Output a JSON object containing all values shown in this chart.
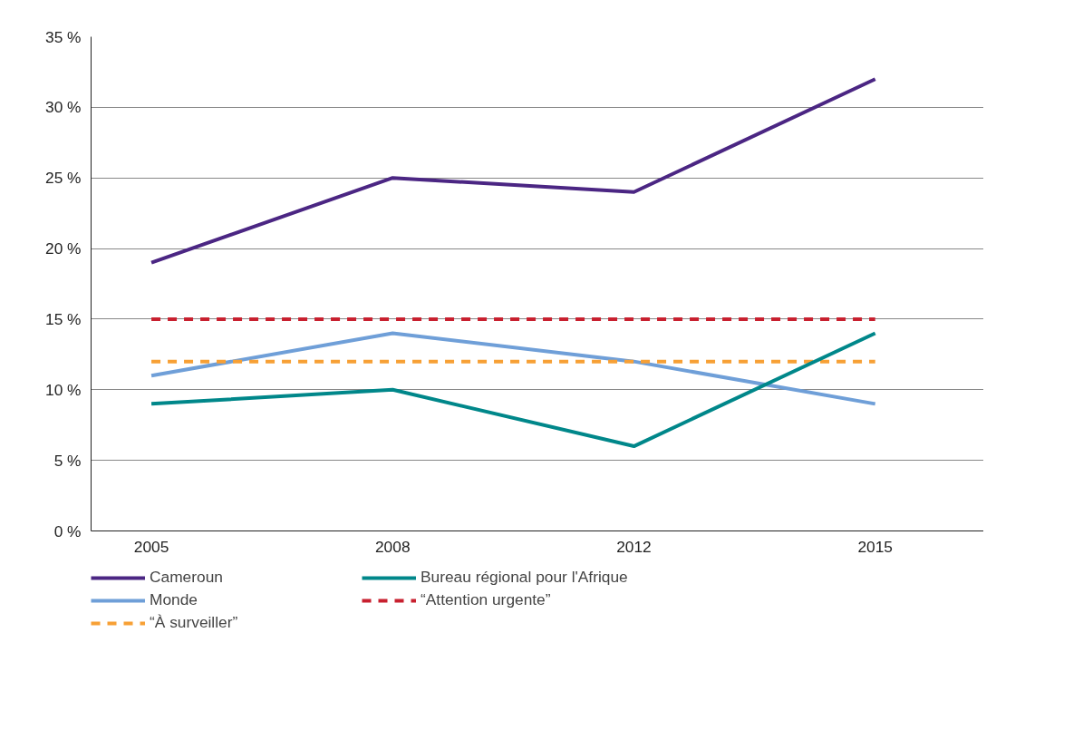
{
  "chart_data": {
    "type": "line",
    "categories": [
      "2005",
      "2008",
      "2012",
      "2015"
    ],
    "series": [
      {
        "name": "Cameroun",
        "color": "#4b2683",
        "values": [
          19,
          25,
          24,
          32
        ]
      },
      {
        "name": "Monde",
        "color": "#6f9fd8",
        "values": [
          11,
          14,
          12,
          9
        ]
      },
      {
        "name": "“À surveiller”",
        "color": "#f7a035",
        "values": [
          12,
          12,
          12,
          12
        ],
        "line_style": "dashed"
      },
      {
        "name": "Bureau régional pour l'Afrique",
        "color": "#00878a",
        "values": [
          9,
          10,
          6,
          14
        ]
      },
      {
        "name": "“Attention urgente”",
        "color": "#c8202f",
        "values": [
          15,
          15,
          15,
          15
        ],
        "line_style": "dashed"
      }
    ],
    "ylim": [
      0,
      35
    ],
    "yticks": [
      {
        "value": 0,
        "label": "0 %"
      },
      {
        "value": 5,
        "label": "5 %"
      },
      {
        "value": 10,
        "label": "10 %"
      },
      {
        "value": 15,
        "label": "15 %"
      },
      {
        "value": 20,
        "label": "20 %"
      },
      {
        "value": 25,
        "label": "25 %"
      },
      {
        "value": 30,
        "label": "30 %"
      },
      {
        "value": 35,
        "label": "35 %"
      }
    ],
    "grid": "y",
    "legend": "bottom",
    "line_style": "solid",
    "marker": "none"
  }
}
